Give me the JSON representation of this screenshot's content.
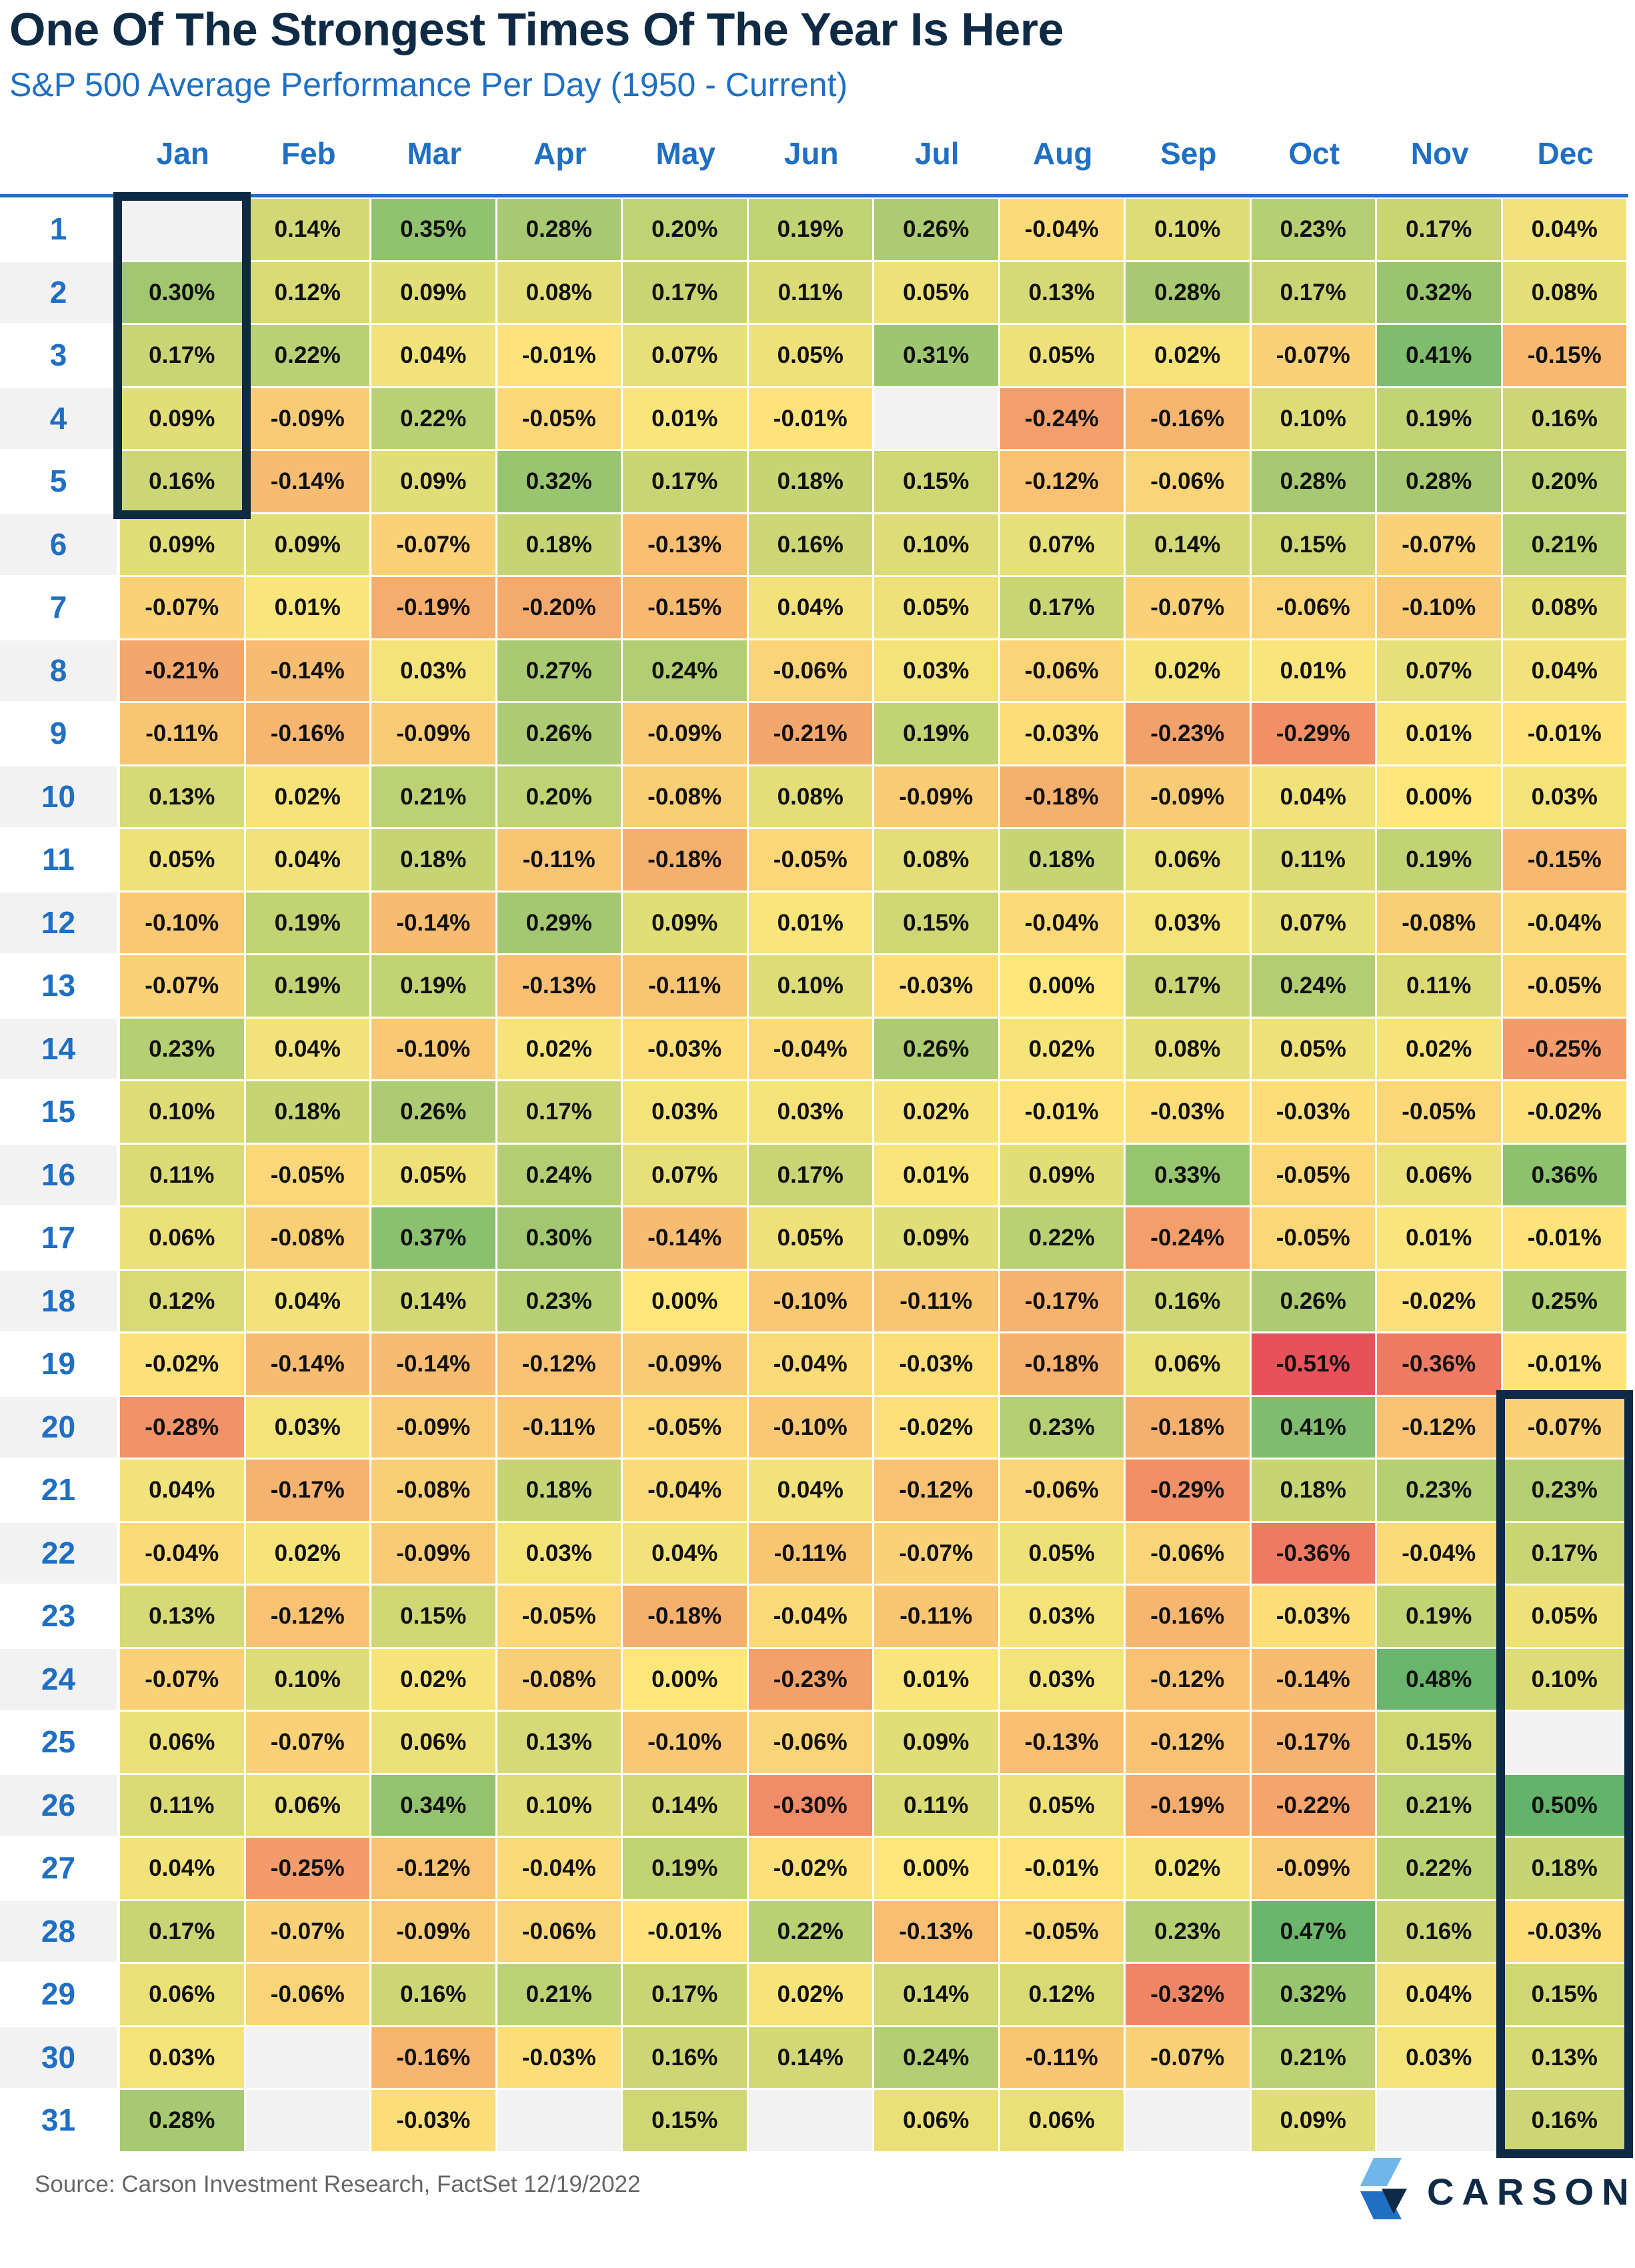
{
  "title": "One Of The Strongest Times Of The Year Is Here",
  "subtitle": "S&P 500 Average Performance Per Day (1950 - Current)",
  "source": "Source: Carson Investment Research, FactSet 12/19/2022",
  "logo_text": "CARSON",
  "colors": {
    "title": "#0f2a44",
    "accent_blue": "#1f6fc4",
    "highlight_box": "#0f2a44",
    "empty_cell": "#f2f2f2",
    "zebra_label": "#f2f2f2",
    "scale_low": "#e8505a",
    "scale_mid": "#fde67a",
    "scale_high": "#63b36a"
  },
  "chart_data": {
    "type": "heatmap",
    "title": "One Of The Strongest Times Of The Year Is Here",
    "subtitle": "S&P 500 Average Performance Per Day (1950 - Current)",
    "columns": [
      "Jan",
      "Feb",
      "Mar",
      "Apr",
      "May",
      "Jun",
      "Jul",
      "Aug",
      "Sep",
      "Oct",
      "Nov",
      "Dec"
    ],
    "rows": [
      "1",
      "2",
      "3",
      "4",
      "5",
      "6",
      "7",
      "8",
      "9",
      "10",
      "11",
      "12",
      "13",
      "14",
      "15",
      "16",
      "17",
      "18",
      "19",
      "20",
      "21",
      "22",
      "23",
      "24",
      "25",
      "26",
      "27",
      "28",
      "29",
      "30",
      "31"
    ],
    "values": [
      [
        null,
        "0.14%",
        "0.35%",
        "0.28%",
        "0.20%",
        "0.19%",
        "0.26%",
        "-0.04%",
        "0.10%",
        "0.23%",
        "0.17%",
        "0.04%"
      ],
      [
        "0.30%",
        "0.12%",
        "0.09%",
        "0.08%",
        "0.17%",
        "0.11%",
        "0.05%",
        "0.13%",
        "0.28%",
        "0.17%",
        "0.32%",
        "0.08%"
      ],
      [
        "0.17%",
        "0.22%",
        "0.04%",
        "-0.01%",
        "0.07%",
        "0.05%",
        "0.31%",
        "0.05%",
        "0.02%",
        "-0.07%",
        "0.41%",
        "-0.15%"
      ],
      [
        "0.09%",
        "-0.09%",
        "0.22%",
        "-0.05%",
        "0.01%",
        "-0.01%",
        null,
        "-0.24%",
        "-0.16%",
        "0.10%",
        "0.19%",
        "0.16%"
      ],
      [
        "0.16%",
        "-0.14%",
        "0.09%",
        "0.32%",
        "0.17%",
        "0.18%",
        "0.15%",
        "-0.12%",
        "-0.06%",
        "0.28%",
        "0.28%",
        "0.20%"
      ],
      [
        "0.09%",
        "0.09%",
        "-0.07%",
        "0.18%",
        "-0.13%",
        "0.16%",
        "0.10%",
        "0.07%",
        "0.14%",
        "0.15%",
        "-0.07%",
        "0.21%"
      ],
      [
        "-0.07%",
        "0.01%",
        "-0.19%",
        "-0.20%",
        "-0.15%",
        "0.04%",
        "0.05%",
        "0.17%",
        "-0.07%",
        "-0.06%",
        "-0.10%",
        "0.08%"
      ],
      [
        "-0.21%",
        "-0.14%",
        "0.03%",
        "0.27%",
        "0.24%",
        "-0.06%",
        "0.03%",
        "-0.06%",
        "0.02%",
        "0.01%",
        "0.07%",
        "0.04%"
      ],
      [
        "-0.11%",
        "-0.16%",
        "-0.09%",
        "0.26%",
        "-0.09%",
        "-0.21%",
        "0.19%",
        "-0.03%",
        "-0.23%",
        "-0.29%",
        "0.01%",
        "-0.01%"
      ],
      [
        "0.13%",
        "0.02%",
        "0.21%",
        "0.20%",
        "-0.08%",
        "0.08%",
        "-0.09%",
        "-0.18%",
        "-0.09%",
        "0.04%",
        "0.00%",
        "0.03%"
      ],
      [
        "0.05%",
        "0.04%",
        "0.18%",
        "-0.11%",
        "-0.18%",
        "-0.05%",
        "0.08%",
        "0.18%",
        "0.06%",
        "0.11%",
        "0.19%",
        "-0.15%"
      ],
      [
        "-0.10%",
        "0.19%",
        "-0.14%",
        "0.29%",
        "0.09%",
        "0.01%",
        "0.15%",
        "-0.04%",
        "0.03%",
        "0.07%",
        "-0.08%",
        "-0.04%"
      ],
      [
        "-0.07%",
        "0.19%",
        "0.19%",
        "-0.13%",
        "-0.11%",
        "0.10%",
        "-0.03%",
        "0.00%",
        "0.17%",
        "0.24%",
        "0.11%",
        "-0.05%"
      ],
      [
        "0.23%",
        "0.04%",
        "-0.10%",
        "0.02%",
        "-0.03%",
        "-0.04%",
        "0.26%",
        "0.02%",
        "0.08%",
        "0.05%",
        "0.02%",
        "-0.25%"
      ],
      [
        "0.10%",
        "0.18%",
        "0.26%",
        "0.17%",
        "0.03%",
        "0.03%",
        "0.02%",
        "-0.01%",
        "-0.03%",
        "-0.03%",
        "-0.05%",
        "-0.02%"
      ],
      [
        "0.11%",
        "-0.05%",
        "0.05%",
        "0.24%",
        "0.07%",
        "0.17%",
        "0.01%",
        "0.09%",
        "0.33%",
        "-0.05%",
        "0.06%",
        "0.36%"
      ],
      [
        "0.06%",
        "-0.08%",
        "0.37%",
        "0.30%",
        "-0.14%",
        "0.05%",
        "0.09%",
        "0.22%",
        "-0.24%",
        "-0.05%",
        "0.01%",
        "-0.01%"
      ],
      [
        "0.12%",
        "0.04%",
        "0.14%",
        "0.23%",
        "0.00%",
        "-0.10%",
        "-0.11%",
        "-0.17%",
        "0.16%",
        "0.26%",
        "-0.02%",
        "0.25%"
      ],
      [
        "-0.02%",
        "-0.14%",
        "-0.14%",
        "-0.12%",
        "-0.09%",
        "-0.04%",
        "-0.03%",
        "-0.18%",
        "0.06%",
        "-0.51%",
        "-0.36%",
        "-0.01%"
      ],
      [
        "-0.28%",
        "0.03%",
        "-0.09%",
        "-0.11%",
        "-0.05%",
        "-0.10%",
        "-0.02%",
        "0.23%",
        "-0.18%",
        "0.41%",
        "-0.12%",
        "-0.07%"
      ],
      [
        "0.04%",
        "-0.17%",
        "-0.08%",
        "0.18%",
        "-0.04%",
        "0.04%",
        "-0.12%",
        "-0.06%",
        "-0.29%",
        "0.18%",
        "0.23%",
        "0.23%"
      ],
      [
        "-0.04%",
        "0.02%",
        "-0.09%",
        "0.03%",
        "0.04%",
        "-0.11%",
        "-0.07%",
        "0.05%",
        "-0.06%",
        "-0.36%",
        "-0.04%",
        "0.17%"
      ],
      [
        "0.13%",
        "-0.12%",
        "0.15%",
        "-0.05%",
        "-0.18%",
        "-0.04%",
        "-0.11%",
        "0.03%",
        "-0.16%",
        "-0.03%",
        "0.19%",
        "0.05%"
      ],
      [
        "-0.07%",
        "0.10%",
        "0.02%",
        "-0.08%",
        "0.00%",
        "-0.23%",
        "0.01%",
        "0.03%",
        "-0.12%",
        "-0.14%",
        "0.48%",
        "0.10%"
      ],
      [
        "0.06%",
        "-0.07%",
        "0.06%",
        "0.13%",
        "-0.10%",
        "-0.06%",
        "0.09%",
        "-0.13%",
        "-0.12%",
        "-0.17%",
        "0.15%",
        null
      ],
      [
        "0.11%",
        "0.06%",
        "0.34%",
        "0.10%",
        "0.14%",
        "-0.30%",
        "0.11%",
        "0.05%",
        "-0.19%",
        "-0.22%",
        "0.21%",
        "0.50%"
      ],
      [
        "0.04%",
        "-0.25%",
        "-0.12%",
        "-0.04%",
        "0.19%",
        "-0.02%",
        "0.00%",
        "-0.01%",
        "0.02%",
        "-0.09%",
        "0.22%",
        "0.18%"
      ],
      [
        "0.17%",
        "-0.07%",
        "-0.09%",
        "-0.06%",
        "-0.01%",
        "0.22%",
        "-0.13%",
        "-0.05%",
        "0.23%",
        "0.47%",
        "0.16%",
        "-0.03%"
      ],
      [
        "0.06%",
        "-0.06%",
        "0.16%",
        "0.21%",
        "0.17%",
        "0.02%",
        "0.14%",
        "0.12%",
        "-0.32%",
        "0.32%",
        "0.04%",
        "0.15%"
      ],
      [
        "0.03%",
        null,
        "-0.16%",
        "-0.03%",
        "0.16%",
        "0.14%",
        "0.24%",
        "-0.11%",
        "-0.07%",
        "0.21%",
        "0.03%",
        "0.13%"
      ],
      [
        "0.28%",
        null,
        "-0.03%",
        null,
        "0.15%",
        null,
        "0.06%",
        "0.06%",
        null,
        "0.09%",
        null,
        "0.16%"
      ]
    ],
    "highlights": [
      {
        "column": "Jan",
        "from_day": "1",
        "to_day": "5"
      },
      {
        "column": "Dec",
        "from_day": "20",
        "to_day": "31"
      }
    ],
    "color_scale": {
      "low": -0.5,
      "mid": 0.0,
      "high": 0.5
    }
  }
}
